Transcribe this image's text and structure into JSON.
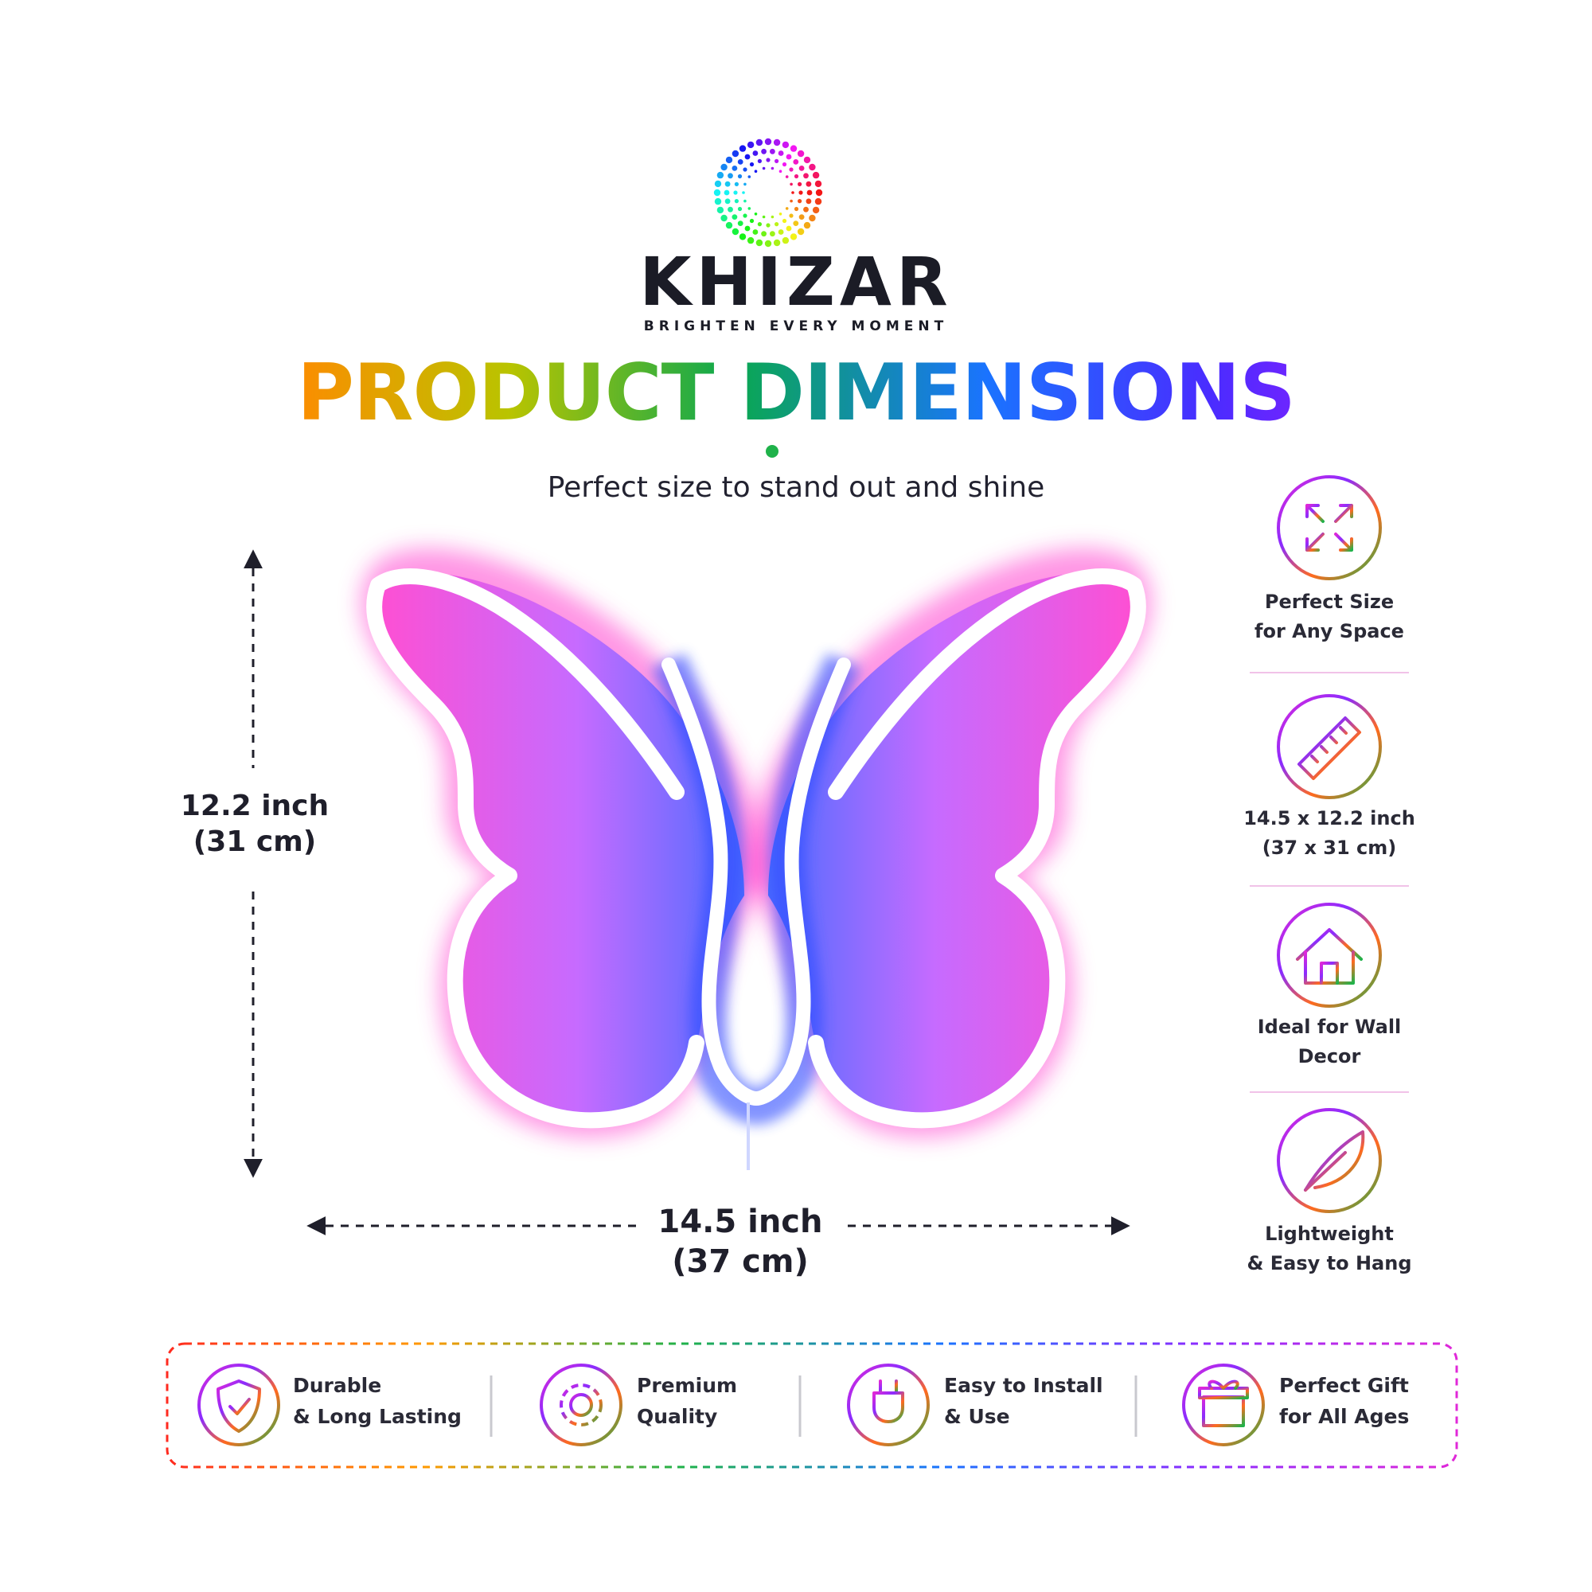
{
  "brand": {
    "name": "KHIZAR",
    "tagline": "BRIGHTEN EVERY MOMENT",
    "logo_icon": "dotted-rainbow-ring-icon"
  },
  "headline": "PRODUCT DIMENSIONS",
  "subtitle": "Perfect size to stand out and shine",
  "product": {
    "height": {
      "line1": "12.2 inch",
      "line2": "(31 cm)"
    },
    "width": {
      "line1": "14.5 inch",
      "line2": "(37 cm)"
    },
    "colors": {
      "wing": "#ff5fd6",
      "outline": "#ffffff",
      "glow": "#ff3fcf",
      "body": "#2d4bff"
    }
  },
  "features": [
    {
      "icon": "expand-arrows-icon",
      "line1": "Perfect Size",
      "line2": "for Any Space"
    },
    {
      "icon": "ruler-icon",
      "line1": "14.5 x 12.2 inch",
      "line2": "(37 x 31 cm)"
    },
    {
      "icon": "house-icon",
      "line1": "Ideal for Wall",
      "line2": "Decor"
    },
    {
      "icon": "feather-icon",
      "line1": "Lightweight",
      "line2": "& Easy to Hang"
    }
  ],
  "benefits": [
    {
      "icon": "shield-check-icon",
      "line1": "Durable",
      "line2": "& Long Lasting"
    },
    {
      "icon": "gear-icon",
      "line1": "Premium",
      "line2": "Quality"
    },
    {
      "icon": "plug-icon",
      "line1": "Easy to Install",
      "line2": "& Use"
    },
    {
      "icon": "gift-icon",
      "line1": "Perfect Gift",
      "line2": "for All Ages"
    }
  ],
  "accent_colors": [
    "#ff2a1f",
    "#ff8a00",
    "#0aa84f",
    "#1a73ff",
    "#9a1cff",
    "#e028d8"
  ]
}
